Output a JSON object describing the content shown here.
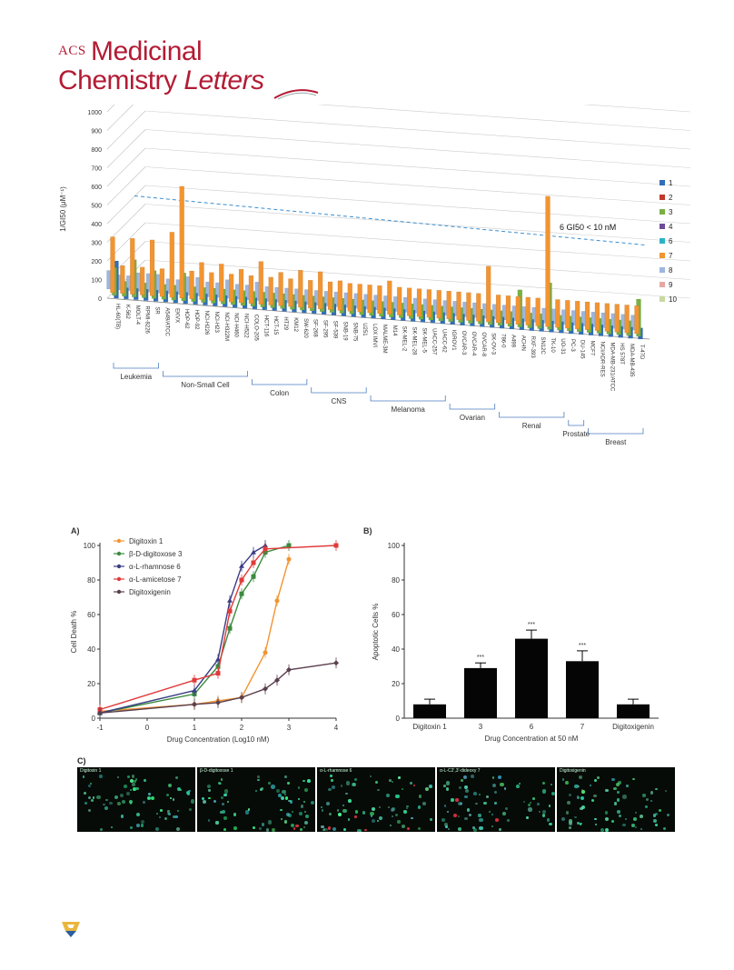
{
  "header": {
    "acs": "ACS",
    "line1": "Medicinal",
    "line2a": "Chemistry",
    "line2b": "Letters"
  },
  "colors": {
    "brand": "#b31b34",
    "s1": "#2f6fb8",
    "s2": "#c0392b",
    "s3": "#79b042",
    "s4": "#6b4c9a",
    "s6": "#2ab3c6",
    "s7": "#f29431",
    "s8": "#9db6de",
    "s9": "#e6a7a3",
    "s10": "#c8d9a3"
  },
  "chart_data": [
    {
      "type": "bar",
      "ylabel": "1/GI50 (μM⁻¹)",
      "ylim": [
        0,
        1000
      ],
      "yticks": [
        "0",
        "100",
        "200",
        "300",
        "400",
        "500",
        "600",
        "700",
        "800",
        "900",
        "1000"
      ],
      "annotation": "6 GI50 < 10 nM",
      "threshold": 500,
      "categories": [
        "HL-60(TB)",
        "K-562",
        "MOLT-4",
        "RPMI-8226",
        "SR",
        "A549/ATCC",
        "EKVX",
        "HOP-62",
        "HOP-92",
        "NCI-H226",
        "NCI-H23",
        "NCI-H322M",
        "NCI-H460",
        "NCI-H522",
        "COLO-205",
        "HCT-116",
        "HCT-15",
        "HT29",
        "KM12",
        "SW-620",
        "SF-268",
        "SF-295",
        "SF-539",
        "SNB-19",
        "SNB-75",
        "U251",
        "LOX IMVI",
        "MALME-3M",
        "M14",
        "SK-MEL-2",
        "SK-MEL-28",
        "SK-MEL-5",
        "UACC-257",
        "UACC-62",
        "IGROV1",
        "OVCAR-3",
        "OVCAR-4",
        "OVCAR-8",
        "SK-OV-3",
        "786-0",
        "A498",
        "ACHN",
        "RXF-393",
        "SN12C",
        "TK-10",
        "UO-31",
        "PC-3",
        "DU-145",
        "MCF7",
        "NCI/ADR-RES",
        "MDA-MB-231/ATCC",
        "HS 578T",
        "MDA-MB-435",
        "T-47D"
      ],
      "groups": [
        {
          "name": "Leukemia"
        },
        {
          "name": "Non-Small Cell"
        },
        {
          "name": "Colon"
        },
        {
          "name": "CNS"
        },
        {
          "name": "Melanoma"
        },
        {
          "name": "Ovarian"
        },
        {
          "name": "Renal"
        },
        {
          "name": "Prostate"
        },
        {
          "name": "Breast"
        }
      ],
      "legend": [
        "1",
        "2",
        "3",
        "4",
        "6",
        "7",
        "8",
        "9",
        "10"
      ],
      "series": [
        {
          "name": "7",
          "values": [
            300,
            150,
            300,
            150,
            300,
            150,
            350,
            600,
            150,
            200,
            150,
            200,
            150,
            180,
            150,
            230,
            150,
            180,
            150,
            200,
            150,
            200,
            150,
            160,
            150,
            150,
            150,
            150,
            180,
            150,
            150,
            150,
            150,
            150,
            150,
            150,
            150,
            150,
            300,
            150,
            150,
            150,
            150,
            150,
            700,
            150,
            150,
            150,
            150,
            150,
            150,
            150,
            150,
            150
          ]
        },
        {
          "name": "3",
          "values": [
            150,
            80,
            200,
            80,
            150,
            80,
            80,
            150,
            80,
            80,
            80,
            80,
            80,
            80,
            80,
            80,
            80,
            80,
            80,
            80,
            80,
            80,
            80,
            80,
            80,
            80,
            80,
            80,
            80,
            80,
            80,
            80,
            80,
            80,
            80,
            80,
            80,
            80,
            80,
            80,
            80,
            200,
            80,
            80,
            250,
            80,
            80,
            80,
            80,
            80,
            80,
            80,
            80,
            200
          ]
        },
        {
          "name": "1",
          "values": [
            200,
            60,
            60,
            60,
            60,
            60,
            60,
            60,
            60,
            60,
            60,
            60,
            60,
            60,
            60,
            60,
            60,
            60,
            60,
            60,
            60,
            60,
            60,
            60,
            60,
            60,
            60,
            60,
            60,
            60,
            60,
            60,
            60,
            60,
            60,
            60,
            60,
            60,
            60,
            60,
            60,
            60,
            60,
            60,
            60,
            60,
            60,
            60,
            60,
            60,
            60,
            60,
            60,
            60
          ]
        },
        {
          "name": "8",
          "values": [
            100,
            80,
            80,
            100,
            100,
            100,
            80,
            80,
            100,
            100,
            80,
            80,
            100,
            80,
            80,
            100,
            80,
            80,
            80,
            80,
            80,
            80,
            80,
            80,
            80,
            80,
            80,
            80,
            80,
            80,
            80,
            80,
            80,
            80,
            80,
            80,
            80,
            80,
            80,
            80,
            80,
            80,
            80,
            80,
            80,
            80,
            80,
            80,
            80,
            80,
            80,
            80,
            80,
            80
          ]
        }
      ]
    },
    {
      "type": "line",
      "label": "A)",
      "xlabel": "Drug Concentration (Log10 nM)",
      "ylabel": "Cell Death %",
      "xlim": [
        -1,
        4
      ],
      "ylim": [
        0,
        100
      ],
      "xticks": [
        "-1",
        "0",
        "1",
        "2",
        "3",
        "4"
      ],
      "yticks": [
        "0",
        "20",
        "40",
        "60",
        "80",
        "100"
      ],
      "series": [
        {
          "name": "Digitoxin 1",
          "color": "#f29431",
          "x": [
            -1,
            1,
            1.5,
            2,
            2.5,
            2.75,
            3
          ],
          "y": [
            4,
            8,
            10,
            12,
            38,
            68,
            92
          ]
        },
        {
          "name": "β-D-digitoxose 3",
          "color": "#3b8a3e",
          "x": [
            -1,
            1,
            1.5,
            1.75,
            2,
            2.25,
            2.5,
            3
          ],
          "y": [
            3,
            14,
            30,
            52,
            72,
            82,
            96,
            100
          ]
        },
        {
          "name": "α-L-rhamnose 6",
          "color": "#3a3d84",
          "x": [
            -1,
            1,
            1.5,
            1.75,
            2,
            2.25,
            2.5
          ],
          "y": [
            3,
            16,
            34,
            68,
            88,
            96,
            100
          ]
        },
        {
          "name": "α-L-amicetose 7",
          "color": "#e03a3a",
          "x": [
            -1,
            1,
            1.5,
            1.75,
            2,
            2.25,
            2.5,
            4
          ],
          "y": [
            5,
            22,
            26,
            62,
            80,
            90,
            98,
            100
          ]
        },
        {
          "name": "Digitoxigenin",
          "color": "#5a3f4e",
          "x": [
            -1,
            1,
            1.5,
            2,
            2.5,
            2.75,
            3,
            4
          ],
          "y": [
            3,
            8,
            9,
            12,
            17,
            22,
            28,
            32
          ]
        }
      ]
    },
    {
      "type": "bar",
      "label": "B)",
      "xlabel": "Drug Concentration at 50 nM",
      "ylabel": "Apoptotic Cells %",
      "ylim": [
        0,
        100
      ],
      "yticks": [
        "0",
        "20",
        "40",
        "60",
        "80",
        "100"
      ],
      "categories": [
        "Digitoxin 1",
        "3",
        "6",
        "7",
        "Digitoxigenin"
      ],
      "values": [
        8,
        29,
        46,
        33,
        8
      ],
      "errors": [
        3,
        3,
        5,
        6,
        3
      ],
      "significance": [
        "",
        "***",
        "***",
        "***",
        ""
      ]
    }
  ],
  "panelC": {
    "label": "C)",
    "images": [
      "Digitoxin 1",
      "β-D-digitoxose 1",
      "α-L-rhamnose 6",
      "α-L-C2',3'-dideoxy 7",
      "Digitoxigenin"
    ]
  }
}
